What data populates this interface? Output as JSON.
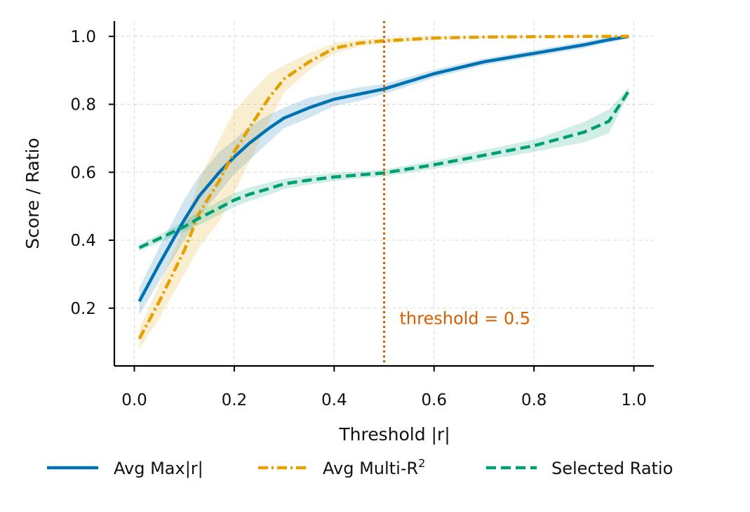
{
  "chart_data": {
    "type": "line",
    "xlabel": "Threshold |r|",
    "ylabel": "Score / Ratio",
    "xlim": [
      -0.04,
      1.04
    ],
    "ylim": [
      0.03,
      1.045
    ],
    "xticks": [
      0.0,
      0.2,
      0.4,
      0.6,
      0.8,
      1.0
    ],
    "xtick_labels": [
      "0.0",
      "0.2",
      "0.4",
      "0.6",
      "0.8",
      "1.0"
    ],
    "yticks": [
      0.2,
      0.4,
      0.6,
      0.8,
      1.0
    ],
    "ytick_labels": [
      "0.2",
      "0.4",
      "0.6",
      "0.8",
      "1.0"
    ],
    "grid": true,
    "legend_position": "bottom",
    "x": [
      0.01,
      0.05,
      0.1,
      0.13,
      0.17,
      0.2,
      0.23,
      0.27,
      0.3,
      0.35,
      0.4,
      0.45,
      0.5,
      0.6,
      0.7,
      0.8,
      0.9,
      0.95,
      0.99
    ],
    "series": [
      {
        "name": "Avg Max|r|",
        "color": "#0072b2",
        "style": "solid",
        "values": [
          0.22,
          0.33,
          0.46,
          0.53,
          0.6,
          0.645,
          0.685,
          0.73,
          0.76,
          0.79,
          0.815,
          0.83,
          0.845,
          0.89,
          0.925,
          0.95,
          0.975,
          0.99,
          1.0
        ],
        "band": [
          0.04,
          0.05,
          0.06,
          0.06,
          0.06,
          0.05,
          0.05,
          0.04,
          0.03,
          0.03,
          0.02,
          0.02,
          0.015,
          0.012,
          0.01,
          0.01,
          0.01,
          0.008,
          0.005
        ]
      },
      {
        "name_main": "Avg Multi-R",
        "name_sup": "2",
        "color": "#e69f00",
        "style": "dashdot",
        "values": [
          0.11,
          0.22,
          0.37,
          0.48,
          0.575,
          0.66,
          0.73,
          0.82,
          0.875,
          0.925,
          0.965,
          0.98,
          0.987,
          0.995,
          0.998,
          0.999,
          1.0,
          1.0,
          1.0
        ],
        "band": [
          0.03,
          0.05,
          0.07,
          0.1,
          0.12,
          0.12,
          0.1,
          0.07,
          0.04,
          0.025,
          0.015,
          0.01,
          0.008,
          0.005,
          0.003,
          0.002,
          0.001,
          0.001,
          0.001
        ]
      },
      {
        "name": "Selected Ratio",
        "color": "#009e73",
        "style": "dashed",
        "values": [
          0.378,
          0.405,
          0.44,
          0.465,
          0.495,
          0.518,
          0.535,
          0.552,
          0.566,
          0.577,
          0.586,
          0.592,
          0.598,
          0.622,
          0.65,
          0.678,
          0.718,
          0.75,
          0.84
        ],
        "band": [
          0.01,
          0.012,
          0.015,
          0.02,
          0.02,
          0.02,
          0.02,
          0.018,
          0.015,
          0.013,
          0.012,
          0.01,
          0.01,
          0.012,
          0.015,
          0.018,
          0.03,
          0.035,
          0.01
        ]
      }
    ],
    "vline": {
      "x": 0.5,
      "color": "#d55e00",
      "label": "threshold = 0.5",
      "label_y": 0.17
    }
  }
}
